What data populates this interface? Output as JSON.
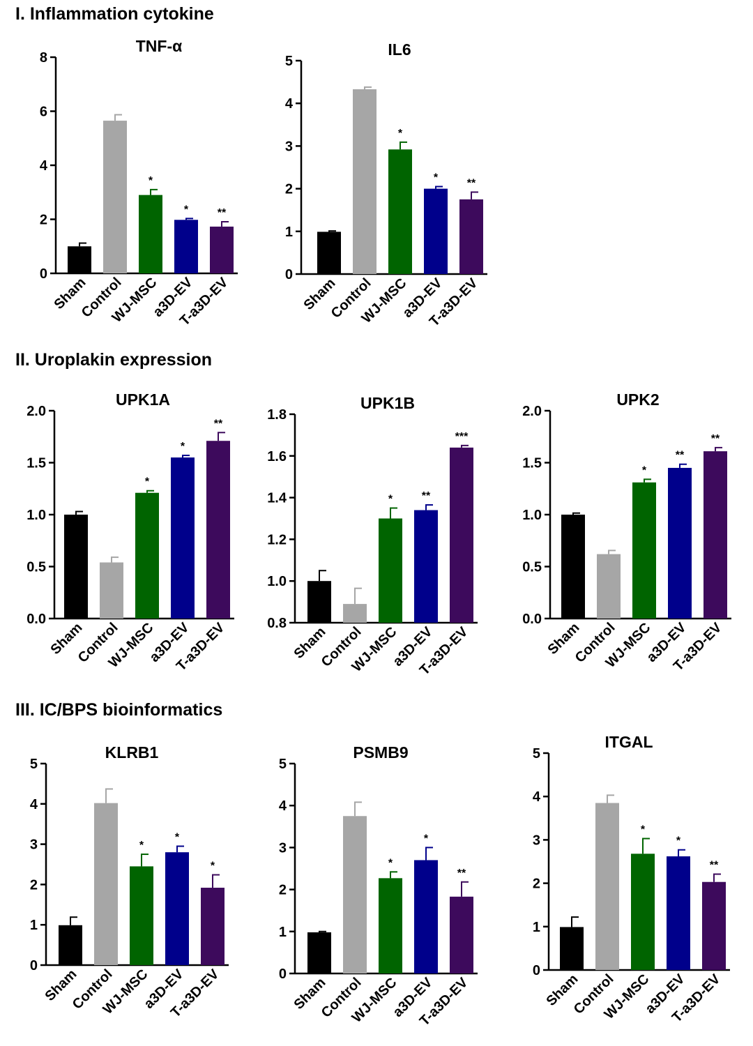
{
  "sections": [
    {
      "title": "I. Inflammation cytokine"
    },
    {
      "title": "II. Uroplakin expression"
    },
    {
      "title": "III. IC/BPS bioinformatics"
    }
  ],
  "colors": {
    "Sham": "#000000",
    "Control": "#a6a6a6",
    "WJ-MSC": "#006400",
    "a3D-EV": "#00008b",
    "T-a3D-EV": "#3d0a5c"
  },
  "chart_data": [
    {
      "type": "bar",
      "title": "TNF-α",
      "categories": [
        "Sham",
        "Control",
        "WJ-MSC",
        "a3D-EV",
        "T-a3D-EV"
      ],
      "values": [
        1.0,
        5.65,
        2.9,
        1.98,
        1.73
      ],
      "errors": [
        0.12,
        0.22,
        0.2,
        0.05,
        0.18
      ],
      "significance": [
        "",
        "",
        "*",
        "*",
        "**"
      ],
      "ylim": [
        0,
        8
      ],
      "yticks": [
        "0",
        "2",
        "4",
        "6",
        "8"
      ],
      "ytick_values": [
        0,
        2,
        4,
        6,
        8
      ]
    },
    {
      "type": "bar",
      "title": "IL6",
      "categories": [
        "Sham",
        "Control",
        "WJ-MSC",
        "a3D-EV",
        "T-a3D-EV"
      ],
      "values": [
        0.99,
        4.33,
        2.92,
        2.0,
        1.75
      ],
      "errors": [
        0.02,
        0.05,
        0.17,
        0.05,
        0.17
      ],
      "significance": [
        "",
        "",
        "*",
        "*",
        "**"
      ],
      "ylim": [
        0,
        5
      ],
      "yticks": [
        "0",
        "1",
        "2",
        "3",
        "4",
        "5"
      ],
      "ytick_values": [
        0,
        1,
        2,
        3,
        4,
        5
      ]
    },
    {
      "type": "bar",
      "title": "UPK1A",
      "categories": [
        "Sham",
        "Control",
        "WJ-MSC",
        "a3D-EV",
        "T-a3D-EV"
      ],
      "values": [
        1.0,
        0.54,
        1.21,
        1.55,
        1.71
      ],
      "errors": [
        0.03,
        0.05,
        0.02,
        0.02,
        0.08
      ],
      "significance": [
        "",
        "",
        "*",
        "*",
        "**"
      ],
      "ylim": [
        0,
        2
      ],
      "yticks": [
        "0.0",
        "0.5",
        "1.0",
        "1.5",
        "2.0"
      ],
      "ytick_values": [
        0,
        0.5,
        1,
        1.5,
        2
      ]
    },
    {
      "type": "bar",
      "title": "UPK1B",
      "categories": [
        "Sham",
        "Control",
        "WJ-MSC",
        "a3D-EV",
        "T-a3D-EV"
      ],
      "values": [
        1.0,
        0.89,
        1.3,
        1.34,
        1.64
      ],
      "errors": [
        0.05,
        0.075,
        0.05,
        0.025,
        0.01
      ],
      "significance": [
        "",
        "",
        "*",
        "**",
        "***"
      ],
      "ylim": [
        0.8,
        1.8
      ],
      "yticks": [
        "0.8",
        "1.0",
        "1.2",
        "1.4",
        "1.6",
        "1.8"
      ],
      "ytick_values": [
        0.8,
        1.0,
        1.2,
        1.4,
        1.6,
        1.8
      ]
    },
    {
      "type": "bar",
      "title": "UPK2",
      "categories": [
        "Sham",
        "Control",
        "WJ-MSC",
        "a3D-EV",
        "T-a3D-EV"
      ],
      "values": [
        1.0,
        0.62,
        1.31,
        1.45,
        1.61
      ],
      "errors": [
        0.015,
        0.035,
        0.03,
        0.035,
        0.035
      ],
      "significance": [
        "",
        "",
        "*",
        "**",
        "**"
      ],
      "ylim": [
        0,
        2
      ],
      "yticks": [
        "0.0",
        "0.5",
        "1.0",
        "1.5",
        "2.0"
      ],
      "ytick_values": [
        0,
        0.5,
        1,
        1.5,
        2
      ]
    },
    {
      "type": "bar",
      "title": "KLRB1",
      "categories": [
        "Sham",
        "Control",
        "WJ-MSC",
        "a3D-EV",
        "T-a3D-EV"
      ],
      "values": [
        0.99,
        4.02,
        2.45,
        2.8,
        1.92
      ],
      "errors": [
        0.2,
        0.35,
        0.3,
        0.15,
        0.32
      ],
      "significance": [
        "",
        "",
        "*",
        "*",
        "*"
      ],
      "ylim": [
        0,
        5
      ],
      "yticks": [
        "0",
        "1",
        "2",
        "3",
        "4",
        "5"
      ],
      "ytick_values": [
        0,
        1,
        2,
        3,
        4,
        5
      ]
    },
    {
      "type": "bar",
      "title": "PSMB9",
      "categories": [
        "Sham",
        "Control",
        "WJ-MSC",
        "a3D-EV",
        "T-a3D-EV"
      ],
      "values": [
        0.98,
        3.75,
        2.27,
        2.7,
        1.83
      ],
      "errors": [
        0.02,
        0.33,
        0.15,
        0.3,
        0.35
      ],
      "significance": [
        "",
        "",
        "*",
        "*",
        "**"
      ],
      "ylim": [
        0,
        5
      ],
      "yticks": [
        "0",
        "1",
        "2",
        "3",
        "4",
        "5"
      ],
      "ytick_values": [
        0,
        1,
        2,
        3,
        4,
        5
      ]
    },
    {
      "type": "bar",
      "title": "ITGAL",
      "categories": [
        "Sham",
        "Control",
        "WJ-MSC",
        "a3D-EV",
        "T-a3D-EV"
      ],
      "values": [
        0.99,
        3.85,
        2.68,
        2.62,
        2.03
      ],
      "errors": [
        0.23,
        0.18,
        0.35,
        0.15,
        0.18
      ],
      "significance": [
        "",
        "",
        "*",
        "*",
        "**"
      ],
      "ylim": [
        0,
        5
      ],
      "yticks": [
        "0",
        "1",
        "2",
        "3",
        "4",
        "5"
      ],
      "ytick_values": [
        0,
        1,
        2,
        3,
        4,
        5
      ]
    }
  ]
}
